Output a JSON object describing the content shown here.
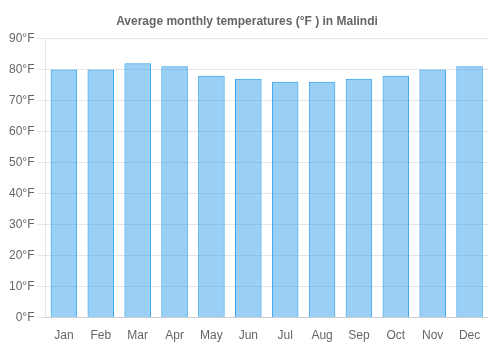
{
  "chart_data": {
    "type": "bar",
    "title": "Average monthly temperatures (°F ) in Malindi",
    "categories": [
      "Jan",
      "Feb",
      "Mar",
      "Apr",
      "May",
      "Jun",
      "Jul",
      "Aug",
      "Sep",
      "Oct",
      "Nov",
      "Dec"
    ],
    "values": [
      80,
      80,
      82,
      81,
      78,
      77,
      76,
      76,
      77,
      78,
      80,
      81
    ],
    "ylim": [
      0,
      90
    ],
    "yticks": [
      {
        "value": 0,
        "label": "0°F"
      },
      {
        "value": 10,
        "label": "10°F"
      },
      {
        "value": 20,
        "label": "20°F"
      },
      {
        "value": 30,
        "label": "30°F"
      },
      {
        "value": 40,
        "label": "40°F"
      },
      {
        "value": 50,
        "label": "50°F"
      },
      {
        "value": 60,
        "label": "60°F"
      },
      {
        "value": 70,
        "label": "70°F"
      },
      {
        "value": 80,
        "label": "80°F"
      },
      {
        "value": 90,
        "label": "90°F"
      }
    ],
    "grid": true
  }
}
